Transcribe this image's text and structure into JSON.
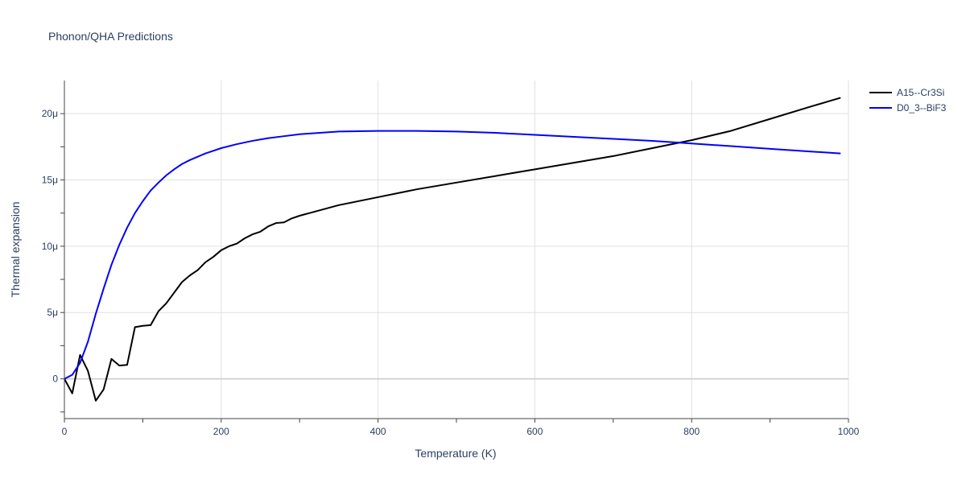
{
  "chart_data": {
    "type": "line",
    "title": "Phonon/QHA Predictions",
    "xlabel": "Temperature (K)",
    "ylabel": "Thermal expansion",
    "xlim": [
      0,
      1000
    ],
    "ylim": [
      -3e-06,
      2.25e-05
    ],
    "x_ticks": [
      0,
      200,
      400,
      600,
      800,
      1000
    ],
    "x_tick_labels": [
      "0",
      "200",
      "400",
      "600",
      "800",
      "1000"
    ],
    "y_ticks": [
      0,
      5e-06,
      1e-05,
      1.5e-05,
      2e-05
    ],
    "y_tick_labels": [
      "0",
      "5μ",
      "10μ",
      "15μ",
      "20μ"
    ],
    "grid": true,
    "legend_position": "top-right",
    "series": [
      {
        "name": "A15--Cr3Si",
        "color": "#000000",
        "x": [
          0,
          10,
          20,
          30,
          40,
          50,
          60,
          70,
          80,
          90,
          100,
          110,
          120,
          130,
          140,
          150,
          160,
          170,
          180,
          190,
          200,
          210,
          220,
          230,
          240,
          250,
          260,
          270,
          280,
          290,
          300,
          350,
          400,
          450,
          500,
          550,
          600,
          650,
          700,
          750,
          800,
          850,
          900,
          950,
          990
        ],
        "y": [
          0,
          -1.1e-06,
          1.8e-06,
          6e-07,
          -1.65e-06,
          -8e-07,
          1.5e-06,
          1e-06,
          1.05e-06,
          3.9e-06,
          4e-06,
          4.05e-06,
          5.1e-06,
          5.7e-06,
          6.5e-06,
          7.3e-06,
          7.8e-06,
          8.2e-06,
          8.8e-06,
          9.2e-06,
          9.7e-06,
          1e-05,
          1.02e-05,
          1.06e-05,
          1.09e-05,
          1.11e-05,
          1.15e-05,
          1.175e-05,
          1.18e-05,
          1.21e-05,
          1.23e-05,
          1.31e-05,
          1.37e-05,
          1.43e-05,
          1.48e-05,
          1.53e-05,
          1.58e-05,
          1.63e-05,
          1.68e-05,
          1.74e-05,
          1.8e-05,
          1.87e-05,
          1.96e-05,
          2.05e-05,
          2.12e-05
        ]
      },
      {
        "name": "D0_3--BiF3",
        "color": "#0000ff",
        "x": [
          0,
          10,
          20,
          30,
          40,
          50,
          60,
          70,
          80,
          90,
          100,
          110,
          120,
          130,
          140,
          150,
          160,
          170,
          180,
          190,
          200,
          220,
          240,
          260,
          280,
          300,
          350,
          400,
          450,
          500,
          550,
          600,
          650,
          700,
          750,
          800,
          850,
          900,
          950,
          990
        ],
        "y": [
          0,
          3e-07,
          1.2e-06,
          2.8e-06,
          4.9e-06,
          6.8e-06,
          8.6e-06,
          1.01e-05,
          1.14e-05,
          1.25e-05,
          1.34e-05,
          1.42e-05,
          1.48e-05,
          1.535e-05,
          1.58e-05,
          1.62e-05,
          1.65e-05,
          1.675e-05,
          1.7e-05,
          1.72e-05,
          1.74e-05,
          1.77e-05,
          1.795e-05,
          1.815e-05,
          1.83e-05,
          1.845e-05,
          1.865e-05,
          1.87e-05,
          1.87e-05,
          1.865e-05,
          1.855e-05,
          1.84e-05,
          1.825e-05,
          1.81e-05,
          1.795e-05,
          1.775e-05,
          1.755e-05,
          1.735e-05,
          1.715e-05,
          1.7e-05
        ]
      }
    ]
  }
}
